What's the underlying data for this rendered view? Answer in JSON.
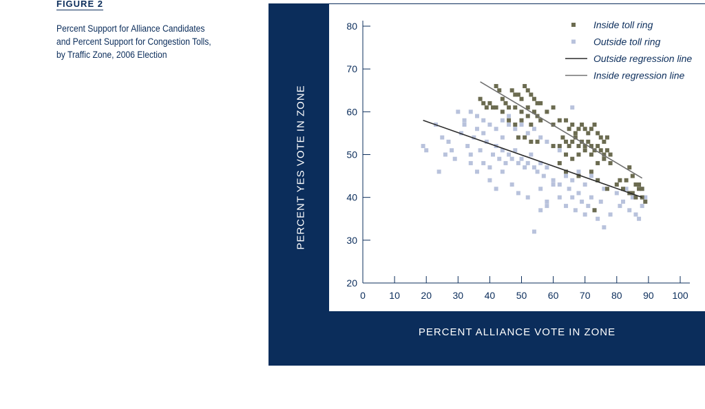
{
  "figure_label": "FIGURE 2",
  "caption": "Percent Support for Alliance Candidates and Percent Support for Congestion Tolls, by Traffic Zone, 2006 Election",
  "colors": {
    "panel": "#0b2d5b",
    "inside": "#6b6b50",
    "outside": "#b8c2dc",
    "outside_line": "#2a2a2a",
    "inside_line": "#707070",
    "axis": "#0b2d5b"
  },
  "chart_data": {
    "type": "scatter",
    "xlabel": "PERCENT ALLIANCE VOTE IN ZONE",
    "ylabel": "PERCENT YES VOTE IN ZONE",
    "xlim": [
      0,
      100
    ],
    "ylim": [
      20,
      80
    ],
    "xticks": [
      0,
      10,
      20,
      30,
      40,
      50,
      60,
      70,
      80,
      90,
      100
    ],
    "yticks": [
      20,
      30,
      40,
      50,
      60,
      70,
      80
    ],
    "grid": false,
    "legend_position": "top-right",
    "series": [
      {
        "name": "Inside toll ring",
        "marker": "square",
        "points": [
          [
            37,
            63
          ],
          [
            38,
            62
          ],
          [
            39,
            61
          ],
          [
            40,
            62
          ],
          [
            41,
            61
          ],
          [
            42,
            66
          ],
          [
            43,
            65
          ],
          [
            44,
            63
          ],
          [
            45,
            62
          ],
          [
            47,
            65
          ],
          [
            48,
            64
          ],
          [
            49,
            64
          ],
          [
            50,
            63
          ],
          [
            51,
            66
          ],
          [
            52,
            65
          ],
          [
            53,
            64
          ],
          [
            54,
            63
          ],
          [
            55,
            62
          ],
          [
            56,
            62
          ],
          [
            42,
            61
          ],
          [
            44,
            60
          ],
          [
            46,
            61
          ],
          [
            48,
            61
          ],
          [
            50,
            60
          ],
          [
            52,
            61
          ],
          [
            54,
            60
          ],
          [
            55,
            59
          ],
          [
            58,
            60
          ],
          [
            60,
            61
          ],
          [
            46,
            58
          ],
          [
            48,
            57
          ],
          [
            50,
            58
          ],
          [
            52,
            59
          ],
          [
            53,
            57
          ],
          [
            56,
            58
          ],
          [
            60,
            57
          ],
          [
            62,
            58
          ],
          [
            64,
            58
          ],
          [
            65,
            56
          ],
          [
            66,
            57
          ],
          [
            67,
            55
          ],
          [
            68,
            56
          ],
          [
            69,
            57
          ],
          [
            70,
            56
          ],
          [
            71,
            55
          ],
          [
            72,
            56
          ],
          [
            73,
            57
          ],
          [
            74,
            55
          ],
          [
            75,
            54
          ],
          [
            76,
            53
          ],
          [
            77,
            54
          ],
          [
            63,
            54
          ],
          [
            64,
            53
          ],
          [
            65,
            52
          ],
          [
            66,
            53
          ],
          [
            67,
            54
          ],
          [
            68,
            52
          ],
          [
            69,
            53
          ],
          [
            70,
            52
          ],
          [
            71,
            53
          ],
          [
            72,
            52
          ],
          [
            73,
            51
          ],
          [
            74,
            52
          ],
          [
            75,
            51
          ],
          [
            76,
            50
          ],
          [
            77,
            51
          ],
          [
            78,
            50
          ],
          [
            53,
            53
          ],
          [
            55,
            53
          ],
          [
            60,
            52
          ],
          [
            62,
            52
          ],
          [
            64,
            50
          ],
          [
            66,
            49
          ],
          [
            68,
            50
          ],
          [
            70,
            51
          ],
          [
            72,
            50
          ],
          [
            74,
            48
          ],
          [
            76,
            49
          ],
          [
            78,
            48
          ],
          [
            62,
            48
          ],
          [
            64,
            46
          ],
          [
            68,
            45
          ],
          [
            72,
            46
          ],
          [
            74,
            44
          ],
          [
            77,
            42
          ],
          [
            80,
            43
          ],
          [
            81,
            44
          ],
          [
            82,
            42
          ],
          [
            83,
            44
          ],
          [
            84,
            47
          ],
          [
            85,
            45
          ],
          [
            86,
            43
          ],
          [
            87,
            42
          ],
          [
            88,
            40
          ],
          [
            85,
            41
          ],
          [
            86,
            40
          ],
          [
            88,
            42
          ],
          [
            89,
            39
          ],
          [
            84,
            41
          ],
          [
            87,
            43
          ],
          [
            73,
            37
          ],
          [
            49,
            54
          ],
          [
            51,
            54
          ]
        ]
      },
      {
        "name": "Outside toll ring",
        "marker": "square",
        "points": [
          [
            19,
            52
          ],
          [
            20,
            51
          ],
          [
            23,
            57
          ],
          [
            25,
            54
          ],
          [
            26,
            50
          ],
          [
            24,
            46
          ],
          [
            27,
            53
          ],
          [
            28,
            51
          ],
          [
            29,
            49
          ],
          [
            30,
            60
          ],
          [
            31,
            55
          ],
          [
            32,
            57
          ],
          [
            33,
            52
          ],
          [
            34,
            50
          ],
          [
            35,
            54
          ],
          [
            36,
            56
          ],
          [
            37,
            51
          ],
          [
            38,
            48
          ],
          [
            39,
            53
          ],
          [
            40,
            47
          ],
          [
            32,
            58
          ],
          [
            34,
            60
          ],
          [
            36,
            59
          ],
          [
            38,
            58
          ],
          [
            40,
            57
          ],
          [
            42,
            56
          ],
          [
            44,
            58
          ],
          [
            46,
            57
          ],
          [
            48,
            56
          ],
          [
            50,
            57
          ],
          [
            52,
            55
          ],
          [
            54,
            56
          ],
          [
            56,
            54
          ],
          [
            58,
            53
          ],
          [
            60,
            52
          ],
          [
            62,
            51
          ],
          [
            41,
            50
          ],
          [
            42,
            52
          ],
          [
            43,
            49
          ],
          [
            44,
            51
          ],
          [
            45,
            48
          ],
          [
            46,
            50
          ],
          [
            47,
            49
          ],
          [
            48,
            51
          ],
          [
            49,
            48
          ],
          [
            50,
            49
          ],
          [
            51,
            47
          ],
          [
            52,
            48
          ],
          [
            53,
            50
          ],
          [
            54,
            47
          ],
          [
            55,
            46
          ],
          [
            56,
            48
          ],
          [
            57,
            45
          ],
          [
            58,
            47
          ],
          [
            40,
            44
          ],
          [
            42,
            42
          ],
          [
            44,
            46
          ],
          [
            47,
            43
          ],
          [
            49,
            41
          ],
          [
            52,
            40
          ],
          [
            56,
            42
          ],
          [
            58,
            39
          ],
          [
            60,
            43
          ],
          [
            62,
            40
          ],
          [
            64,
            38
          ],
          [
            65,
            42
          ],
          [
            66,
            40
          ],
          [
            67,
            37
          ],
          [
            68,
            41
          ],
          [
            69,
            39
          ],
          [
            70,
            36
          ],
          [
            71,
            38
          ],
          [
            72,
            40
          ],
          [
            73,
            37
          ],
          [
            74,
            35
          ],
          [
            75,
            39
          ],
          [
            76,
            33
          ],
          [
            78,
            36
          ],
          [
            60,
            44
          ],
          [
            62,
            43
          ],
          [
            64,
            45
          ],
          [
            66,
            44
          ],
          [
            68,
            46
          ],
          [
            70,
            43
          ],
          [
            72,
            45
          ],
          [
            74,
            44
          ],
          [
            76,
            42
          ],
          [
            58,
            38
          ],
          [
            56,
            37
          ],
          [
            54,
            32
          ],
          [
            66,
            61
          ],
          [
            46,
            59
          ],
          [
            44,
            54
          ],
          [
            38,
            55
          ],
          [
            36,
            46
          ],
          [
            34,
            48
          ],
          [
            80,
            41
          ],
          [
            82,
            39
          ],
          [
            84,
            37
          ],
          [
            86,
            36
          ],
          [
            87,
            35
          ],
          [
            88,
            38
          ],
          [
            89,
            40
          ],
          [
            83,
            42
          ],
          [
            81,
            38
          ],
          [
            85,
            40
          ],
          [
            88,
            42
          ]
        ]
      }
    ],
    "regression_lines": [
      {
        "name": "Outside regression line",
        "x": [
          19,
          88
        ],
        "y": [
          58,
          40
        ]
      },
      {
        "name": "Inside regression line",
        "x": [
          37,
          88
        ],
        "y": [
          67,
          44.5
        ]
      }
    ]
  }
}
